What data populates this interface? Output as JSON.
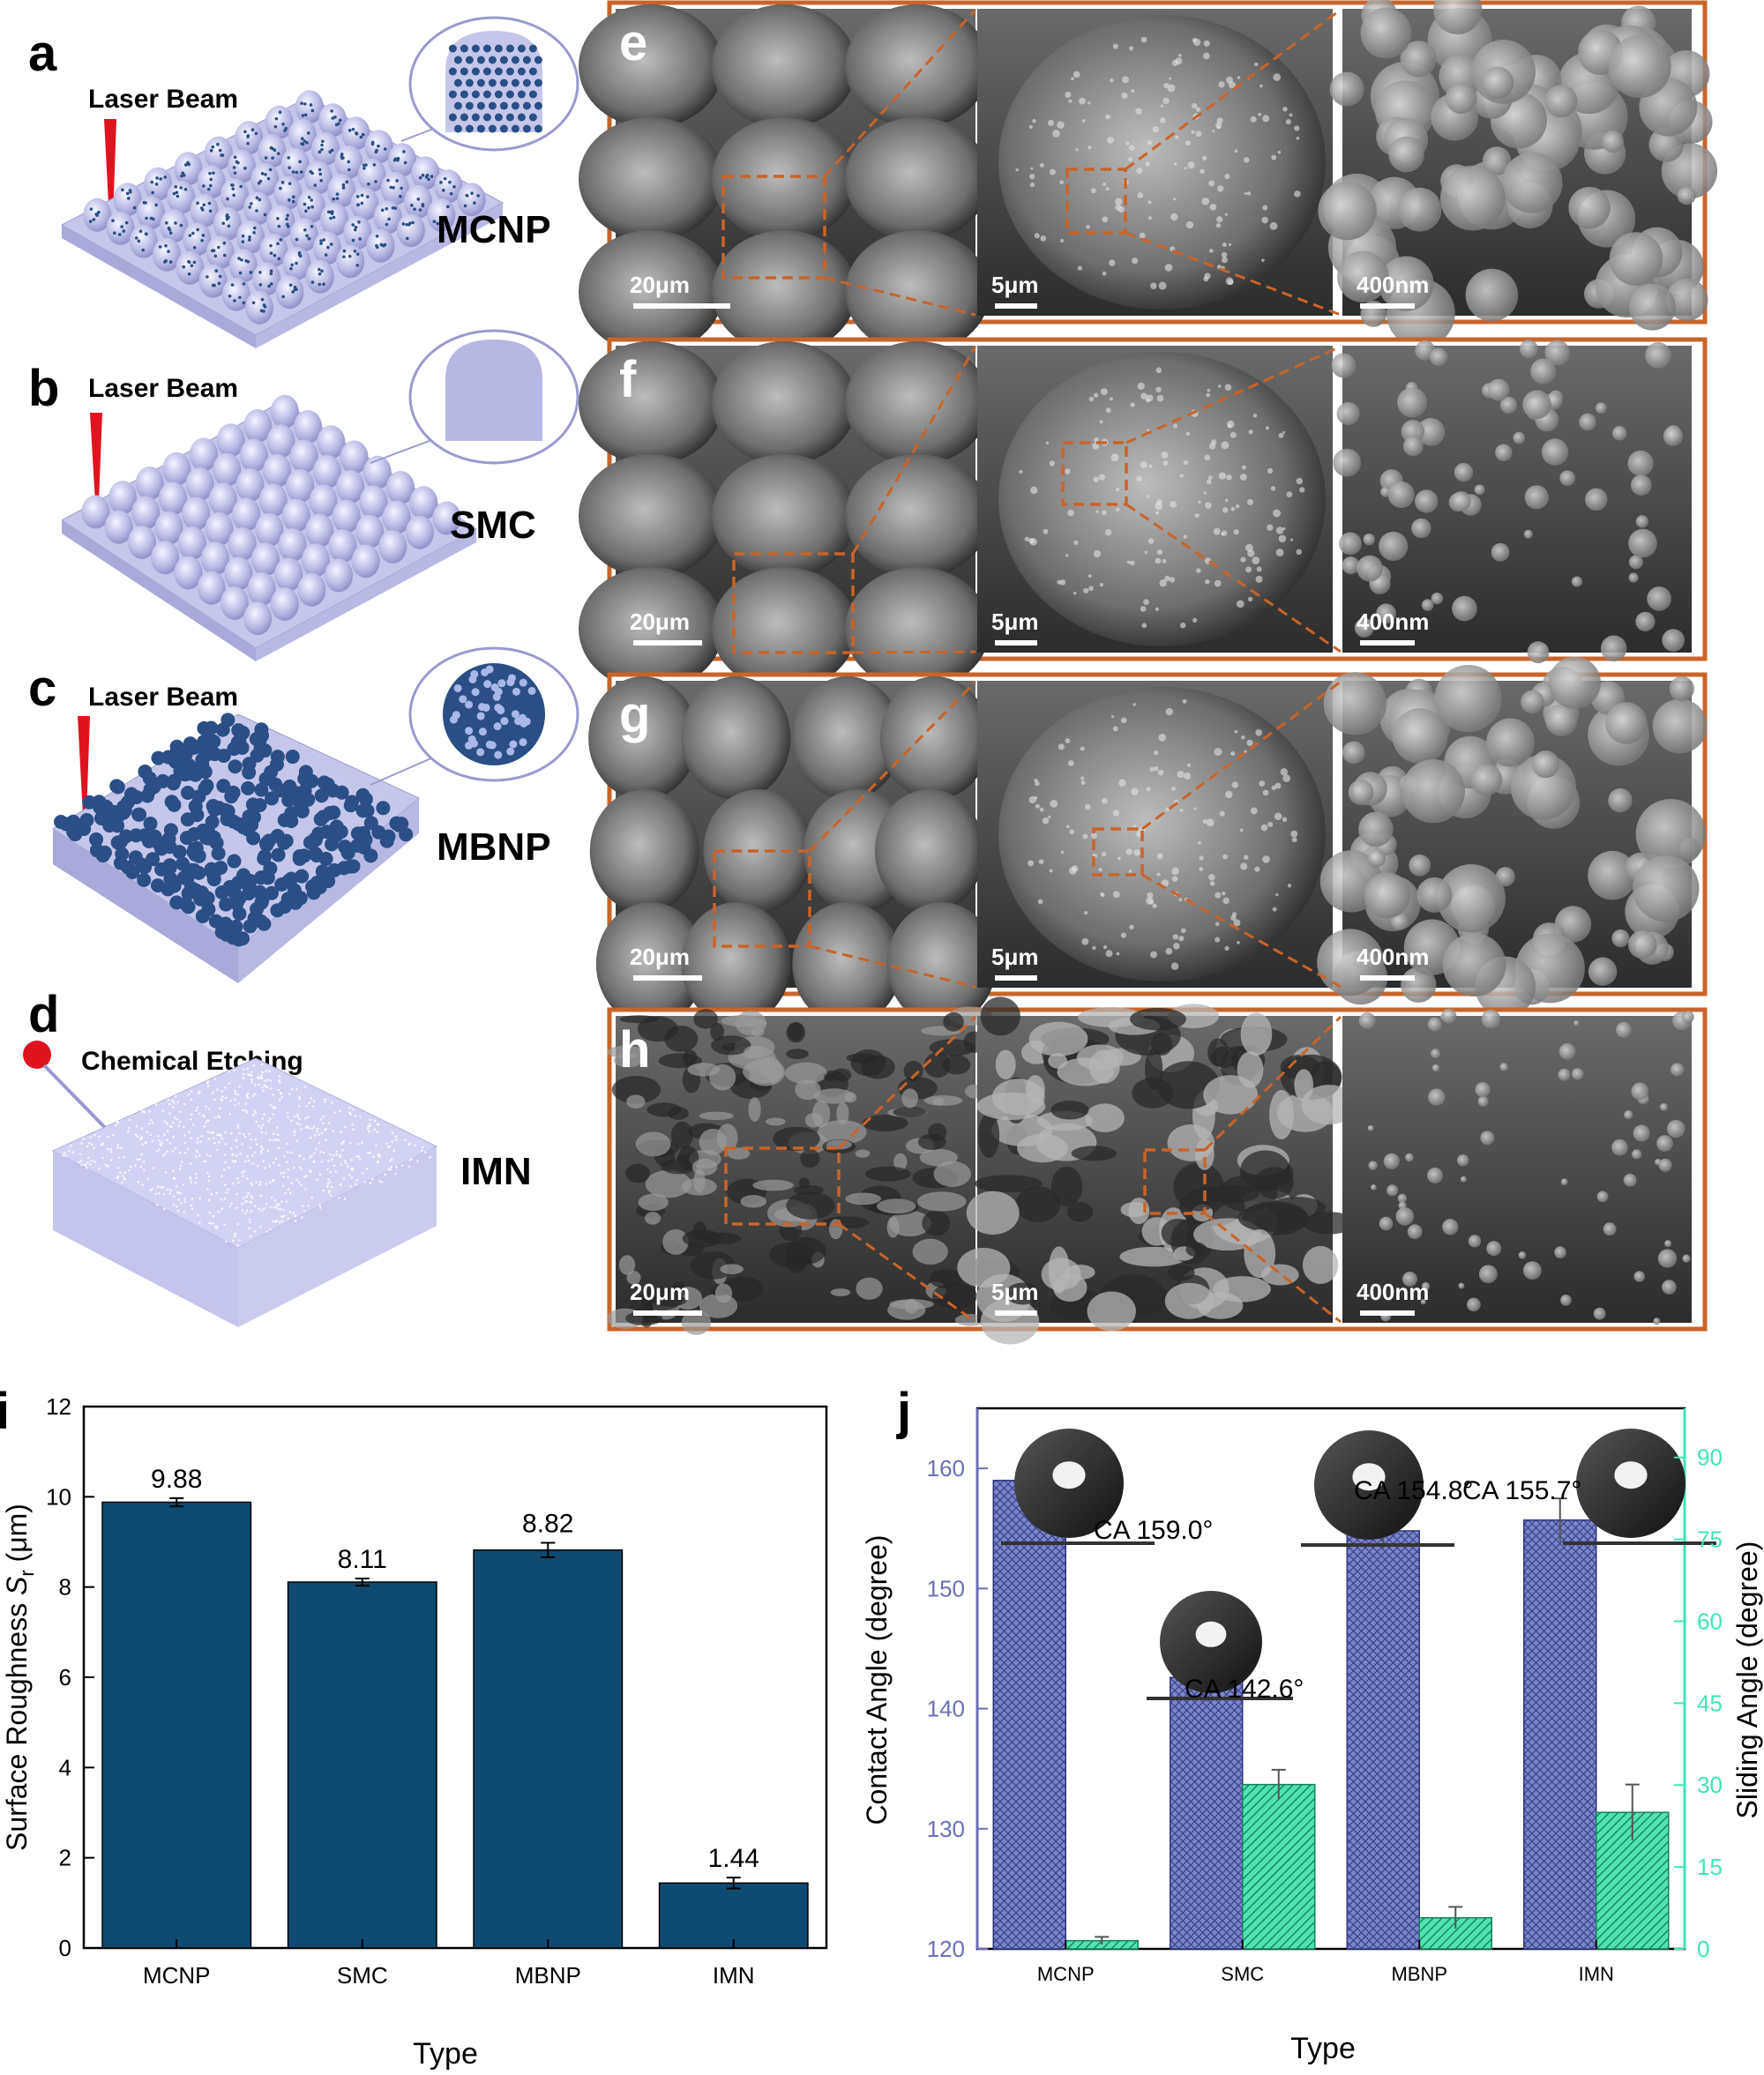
{
  "panels": {
    "a": {
      "letter": "a",
      "process": "Laser Beam",
      "name": "MCNP"
    },
    "b": {
      "letter": "b",
      "process": "Laser Beam",
      "name": "SMC"
    },
    "c": {
      "letter": "c",
      "process": "Laser Beam",
      "name": "MBNP"
    },
    "d": {
      "letter": "d",
      "process": "Chemical Etching",
      "name": "IMN"
    }
  },
  "sem_rows": [
    {
      "letter": "e",
      "scales": [
        "20μm",
        "5μm",
        "400nm"
      ],
      "tone": "bright-nodules"
    },
    {
      "letter": "f",
      "scales": [
        "20μm",
        "5μm",
        "400nm"
      ],
      "tone": "smooth-cones"
    },
    {
      "letter": "g",
      "scales": [
        "20μm",
        "5μm",
        "400nm"
      ],
      "tone": "cauliflower"
    },
    {
      "letter": "h",
      "scales": [
        "20μm",
        "5μm",
        "400nm"
      ],
      "tone": "porous-etched"
    }
  ],
  "colors": {
    "sem_frame": "#c8642a",
    "bar_i": "#0e4a72",
    "contact_bar": "#7d86c8",
    "sliding_bar": "#4fe3b0",
    "contact_axis": "#6a6fb8",
    "sliding_axis": "#3ee6b8",
    "model_body": "#c6c6ec",
    "particle": "#2a4f86"
  },
  "chart_data": [
    {
      "type": "bar",
      "panel_letter": "i",
      "categories": [
        "MCNP",
        "SMC",
        "MBNP",
        "IMN"
      ],
      "values": [
        9.88,
        8.11,
        8.82,
        1.44
      ],
      "errors": [
        0.09,
        0.08,
        0.16,
        0.12
      ],
      "value_labels": [
        "9.88",
        "8.11",
        "8.82",
        "1.44"
      ],
      "xlabel": "Type",
      "ylabel_main": "Surface Roughness ",
      "ylabel_italic": "S",
      "ylabel_sub": "r",
      "ylabel_unit": " (μm)",
      "ylim": [
        0,
        12
      ],
      "yticks": [
        "0",
        "2",
        "4",
        "6",
        "8",
        "10",
        "12"
      ],
      "grid": false
    },
    {
      "type": "bar",
      "panel_letter": "j",
      "categories": [
        "MCNP",
        "SMC",
        "MBNP",
        "IMN"
      ],
      "series": [
        {
          "values": [
            159.0,
            142.6,
            154.8,
            155.7
          ],
          "errors": [
            1.8,
            2.0,
            1.5,
            1.8
          ],
          "axis": "left"
        },
        {
          "values": [
            1.5,
            30.1,
            5.7,
            25.0
          ],
          "errors": [
            0.7,
            2.7,
            2.0,
            5.1
          ],
          "axis": "right"
        }
      ],
      "annotations": [
        "CA 159.0°",
        "CA 142.6°",
        "CA 154.8°",
        "CA 155.7°"
      ],
      "xlabel": "Type",
      "ylabel_left": "Contact Angle (degree)",
      "ylabel_right": "Sliding Angle (degree)",
      "ylim_left": [
        120,
        165
      ],
      "yticks_left": [
        "120",
        "130",
        "140",
        "150",
        "160"
      ],
      "ylim_right": [
        0,
        99
      ],
      "yticks_right": [
        "0",
        "15",
        "30",
        "45",
        "60",
        "75",
        "90"
      ],
      "grid": false
    }
  ]
}
